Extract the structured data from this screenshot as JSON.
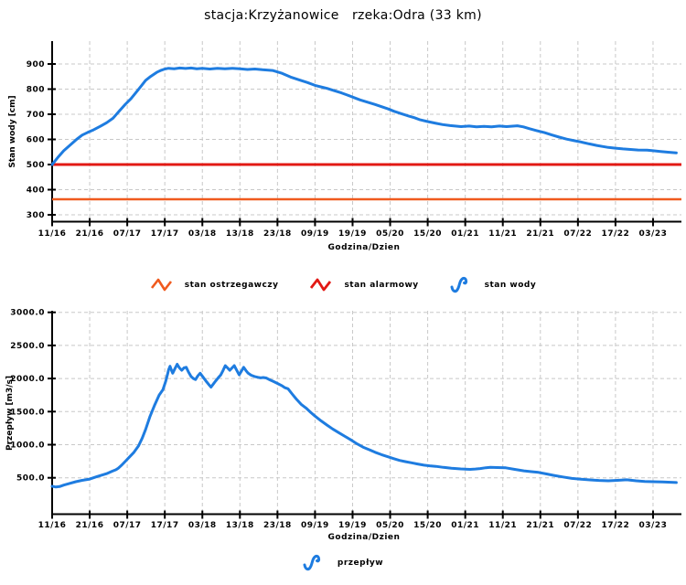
{
  "title": "stacja:Krzyżanowice   rzeka:Odra (33 km)",
  "colors": {
    "series_blue": "#1e7ce0",
    "alarm_red": "#e21914",
    "warning_orange": "#f05a1e",
    "grid": "#c8c8c8",
    "axis": "#000000"
  },
  "chart_data": [
    {
      "type": "line",
      "title": "",
      "ylabel": "Stan wody [cm]",
      "xlabel": "Godzina/Dzien",
      "grid": true,
      "legend_position": "below",
      "ylim": [
        300,
        990
      ],
      "yticks": [
        "900",
        "800",
        "700",
        "600",
        "500",
        "400",
        "300"
      ],
      "categories": [
        "11/16",
        "21/16",
        "07/17",
        "17/17",
        "03/18",
        "13/18",
        "23/18",
        "09/19",
        "19/19",
        "05/20",
        "15/20",
        "01/21",
        "11/21",
        "21/21",
        "07/22",
        "17/22",
        "03/23"
      ],
      "hlines": [
        {
          "name": "stan alarmowy",
          "value": 500,
          "color_key": "alarm_red",
          "width": 3
        },
        {
          "name": "stan ostrzegawczy",
          "value": 362,
          "color_key": "warning_orange",
          "width": 2.5
        }
      ],
      "series": [
        {
          "name": "stan wody",
          "color_key": "series_blue",
          "width": 3,
          "points": [
            [
              0,
              500
            ],
            [
              0.15,
              528
            ],
            [
              0.31,
              555
            ],
            [
              0.5,
              580
            ],
            [
              0.65,
              600
            ],
            [
              0.8,
              617
            ],
            [
              0.95,
              628
            ],
            [
              1.1,
              638
            ],
            [
              1.28,
              652
            ],
            [
              1.45,
              666
            ],
            [
              1.62,
              684
            ],
            [
              1.79,
              713
            ],
            [
              1.95,
              740
            ],
            [
              2.1,
              762
            ],
            [
              2.25,
              790
            ],
            [
              2.37,
              812
            ],
            [
              2.49,
              835
            ],
            [
              2.6,
              848
            ],
            [
              2.7,
              858
            ],
            [
              2.8,
              868
            ],
            [
              2.9,
              875
            ],
            [
              3.0,
              880
            ],
            [
              3.1,
              883
            ],
            [
              3.25,
              881
            ],
            [
              3.4,
              884
            ],
            [
              3.55,
              882
            ],
            [
              3.7,
              884
            ],
            [
              3.85,
              881
            ],
            [
              4.0,
              883
            ],
            [
              4.2,
              880
            ],
            [
              4.4,
              883
            ],
            [
              4.6,
              881
            ],
            [
              4.8,
              883
            ],
            [
              5.0,
              881
            ],
            [
              5.2,
              878
            ],
            [
              5.4,
              880
            ],
            [
              5.6,
              877
            ],
            [
              5.87,
              874
            ],
            [
              6.1,
              864
            ],
            [
              6.35,
              848
            ],
            [
              6.59,
              836
            ],
            [
              6.8,
              826
            ],
            [
              7.0,
              815
            ],
            [
              7.15,
              809
            ],
            [
              7.32,
              803
            ],
            [
              7.5,
              794
            ],
            [
              7.7,
              785
            ],
            [
              7.87,
              776
            ],
            [
              8.04,
              766
            ],
            [
              8.2,
              757
            ],
            [
              8.4,
              748
            ],
            [
              8.6,
              739
            ],
            [
              8.77,
              730
            ],
            [
              8.95,
              721
            ],
            [
              9.1,
              712
            ],
            [
              9.3,
              702
            ],
            [
              9.49,
              693
            ],
            [
              9.65,
              686
            ],
            [
              9.8,
              678
            ],
            [
              10.0,
              671
            ],
            [
              10.22,
              664
            ],
            [
              10.4,
              659
            ],
            [
              10.6,
              655
            ],
            [
              10.89,
              651
            ],
            [
              11.1,
              653
            ],
            [
              11.3,
              650
            ],
            [
              11.5,
              652
            ],
            [
              11.7,
              650
            ],
            [
              11.91,
              653
            ],
            [
              12.1,
              651
            ],
            [
              12.39,
              654
            ],
            [
              12.55,
              650
            ],
            [
              12.7,
              643
            ],
            [
              12.9,
              635
            ],
            [
              13.11,
              627
            ],
            [
              13.3,
              618
            ],
            [
              13.5,
              609
            ],
            [
              13.7,
              601
            ],
            [
              13.9,
              595
            ],
            [
              14.08,
              590
            ],
            [
              14.3,
              582
            ],
            [
              14.5,
              576
            ],
            [
              14.65,
              572
            ],
            [
              14.81,
              568
            ],
            [
              15.0,
              565
            ],
            [
              15.2,
              562
            ],
            [
              15.4,
              560
            ],
            [
              15.6,
              558
            ],
            [
              15.84,
              557
            ],
            [
              16.0,
              555
            ],
            [
              16.2,
              552
            ],
            [
              16.4,
              549
            ],
            [
              16.62,
              546
            ]
          ]
        }
      ]
    },
    {
      "type": "line",
      "title": "",
      "ylabel": "Przepływ [m3/s]",
      "xlabel": "Godzina/Dzien",
      "grid": true,
      "legend_position": "below",
      "ylim": [
        0,
        3050
      ],
      "yticks": [
        "3000.0",
        "2500.0",
        "2000.0",
        "1500.0",
        "1000.0",
        "500.0"
      ],
      "categories": [
        "11/16",
        "21/16",
        "07/17",
        "17/17",
        "03/18",
        "13/18",
        "23/18",
        "09/19",
        "19/19",
        "05/20",
        "15/20",
        "01/21",
        "11/21",
        "21/21",
        "07/22",
        "17/22",
        "03/23"
      ],
      "hlines": [],
      "series": [
        {
          "name": "przepływ",
          "color_key": "series_blue",
          "width": 3,
          "points": [
            [
              0,
              372
            ],
            [
              0.1,
              360
            ],
            [
              0.2,
              368
            ],
            [
              0.31,
              390
            ],
            [
              0.45,
              412
            ],
            [
              0.63,
              440
            ],
            [
              0.8,
              462
            ],
            [
              1.0,
              480
            ],
            [
              1.1,
              500
            ],
            [
              1.2,
              520
            ],
            [
              1.32,
              540
            ],
            [
              1.45,
              562
            ],
            [
              1.6,
              600
            ],
            [
              1.7,
              622
            ],
            [
              1.76,
              645
            ],
            [
              1.85,
              690
            ],
            [
              1.95,
              750
            ],
            [
              2.05,
              810
            ],
            [
              2.17,
              880
            ],
            [
              2.3,
              980
            ],
            [
              2.4,
              1100
            ],
            [
              2.49,
              1230
            ],
            [
              2.6,
              1420
            ],
            [
              2.73,
              1600
            ],
            [
              2.85,
              1750
            ],
            [
              2.95,
              1830
            ],
            [
              3.02,
              1950
            ],
            [
              3.07,
              2060
            ],
            [
              3.1,
              2130
            ],
            [
              3.14,
              2185
            ],
            [
              3.18,
              2120
            ],
            [
              3.21,
              2080
            ],
            [
              3.27,
              2150
            ],
            [
              3.33,
              2215
            ],
            [
              3.39,
              2160
            ],
            [
              3.45,
              2125
            ],
            [
              3.51,
              2160
            ],
            [
              3.57,
              2170
            ],
            [
              3.63,
              2100
            ],
            [
              3.7,
              2030
            ],
            [
              3.76,
              2000
            ],
            [
              3.82,
              1985
            ],
            [
              3.88,
              2040
            ],
            [
              3.94,
              2080
            ],
            [
              4.02,
              2020
            ],
            [
              4.1,
              1960
            ],
            [
              4.17,
              1910
            ],
            [
              4.23,
              1870
            ],
            [
              4.29,
              1915
            ],
            [
              4.35,
              1960
            ],
            [
              4.42,
              2010
            ],
            [
              4.49,
              2055
            ],
            [
              4.55,
              2120
            ],
            [
              4.61,
              2195
            ],
            [
              4.67,
              2160
            ],
            [
              4.73,
              2125
            ],
            [
              4.79,
              2160
            ],
            [
              4.85,
              2195
            ],
            [
              4.92,
              2120
            ],
            [
              4.98,
              2055
            ],
            [
              5.04,
              2110
            ],
            [
              5.1,
              2170
            ],
            [
              5.16,
              2120
            ],
            [
              5.22,
              2080
            ],
            [
              5.3,
              2050
            ],
            [
              5.39,
              2030
            ],
            [
              5.47,
              2020
            ],
            [
              5.55,
              2010
            ],
            [
              5.62,
              2015
            ],
            [
              5.7,
              2008
            ],
            [
              5.78,
              1985
            ],
            [
              5.87,
              1962
            ],
            [
              6.0,
              1925
            ],
            [
              6.11,
              1893
            ],
            [
              6.2,
              1860
            ],
            [
              6.28,
              1845
            ],
            [
              6.4,
              1760
            ],
            [
              6.5,
              1690
            ],
            [
              6.63,
              1610
            ],
            [
              6.76,
              1554
            ],
            [
              6.88,
              1490
            ],
            [
              7.0,
              1432
            ],
            [
              7.16,
              1360
            ],
            [
              7.32,
              1295
            ],
            [
              7.47,
              1238
            ],
            [
              7.63,
              1182
            ],
            [
              7.8,
              1124
            ],
            [
              7.97,
              1068
            ],
            [
              8.12,
              1012
            ],
            [
              8.28,
              963
            ],
            [
              8.45,
              922
            ],
            [
              8.6,
              886
            ],
            [
              8.77,
              850
            ],
            [
              8.94,
              818
            ],
            [
              9.1,
              789
            ],
            [
              9.25,
              763
            ],
            [
              9.4,
              744
            ],
            [
              9.57,
              727
            ],
            [
              9.73,
              708
            ],
            [
              9.9,
              691
            ],
            [
              10.05,
              681
            ],
            [
              10.22,
              673
            ],
            [
              10.42,
              658
            ],
            [
              10.63,
              645
            ],
            [
              10.88,
              634
            ],
            [
              11.13,
              627
            ],
            [
              11.27,
              633
            ],
            [
              11.4,
              640
            ],
            [
              11.55,
              652
            ],
            [
              11.67,
              659
            ],
            [
              11.85,
              655
            ],
            [
              12.08,
              650
            ],
            [
              12.3,
              628
            ],
            [
              12.56,
              605
            ],
            [
              12.76,
              593
            ],
            [
              12.95,
              582
            ],
            [
              13.15,
              560
            ],
            [
              13.36,
              536
            ],
            [
              13.6,
              512
            ],
            [
              13.84,
              491
            ],
            [
              14.08,
              478
            ],
            [
              14.32,
              468
            ],
            [
              14.56,
              460
            ],
            [
              14.81,
              455
            ],
            [
              15.05,
              462
            ],
            [
              15.3,
              470
            ],
            [
              15.55,
              455
            ],
            [
              15.78,
              445
            ],
            [
              16.0,
              440
            ],
            [
              16.26,
              436
            ],
            [
              16.62,
              428
            ]
          ]
        }
      ]
    }
  ],
  "legend_top": {
    "items": [
      {
        "label": "stan ostrzegawczy",
        "color": "#f05a1e",
        "icon": "zigzag"
      },
      {
        "label": "stan alarmowy",
        "color": "#e21914",
        "icon": "zigzag"
      },
      {
        "label": "stan wody",
        "color": "#1e7ce0",
        "icon": "wave"
      }
    ]
  },
  "legend_bottom": {
    "items": [
      {
        "label": "przepływ",
        "color": "#1e7ce0",
        "icon": "wave"
      }
    ]
  }
}
